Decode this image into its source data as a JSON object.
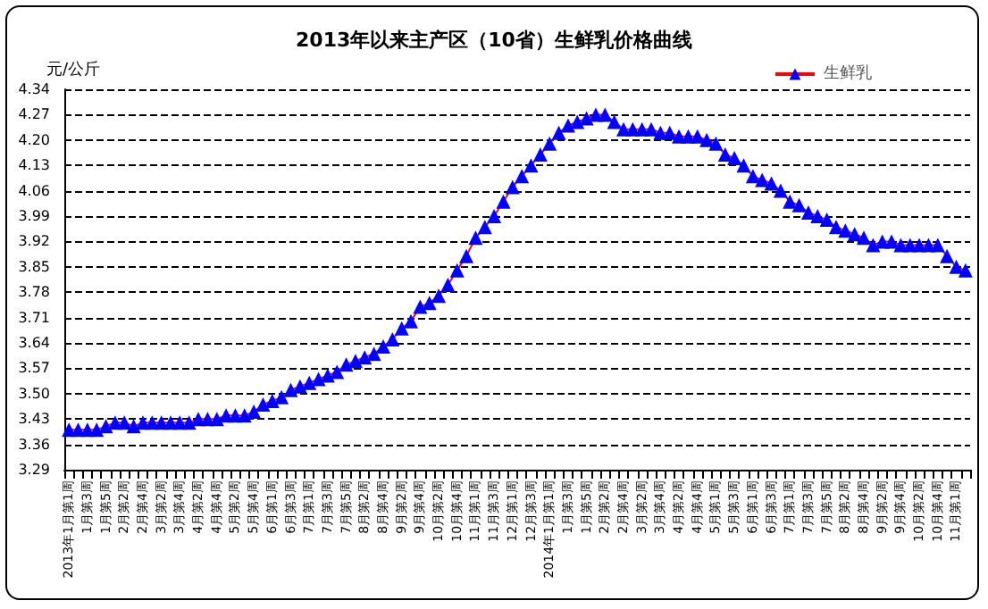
{
  "chart_data": {
    "type": "line",
    "title": "2013年以来主产区（10省）生鲜乳价格曲线",
    "ylabel": "元/公斤",
    "categories": [
      "2013年1月第1周",
      null,
      "1月第3周",
      null,
      "1月第5周",
      null,
      "2月第2周",
      null,
      "2月第4周",
      null,
      "3月第2周",
      null,
      "3月第4周",
      null,
      "4月第2周",
      null,
      "4月第4周",
      null,
      "5月第2周",
      null,
      "5月第4周",
      null,
      "6月第1周",
      null,
      "6月第3周",
      null,
      "7月第1周",
      null,
      "7月第3周",
      null,
      "7月第5周",
      null,
      "8月第2周",
      null,
      "8月第4周",
      null,
      "9月第2周",
      null,
      "9月第4周",
      null,
      "10月第2周",
      null,
      "10月第4周",
      null,
      "11月第1周",
      null,
      "11月第3周",
      null,
      "12月第1周",
      null,
      "12月第3周",
      null,
      "2014年1月第1周",
      null,
      "1月第3周",
      null,
      "1月第5周",
      null,
      "2月第2周",
      null,
      "2月第4周",
      null,
      "3月第2周",
      null,
      "3月第4周",
      null,
      "4月第2周",
      null,
      "4月第4周",
      null,
      "5月第1周",
      null,
      "5月第3周",
      null,
      "6月第1周",
      null,
      "6月第3周",
      null,
      "7月第1周",
      null,
      "7月第3周",
      null,
      "7月第5周",
      null,
      "8月第2周",
      null,
      "8月第4周",
      null,
      "9月第2周",
      null,
      "9月第4周",
      null,
      "10月第2周",
      null,
      "10月第4周",
      null,
      "11月第1周",
      null
    ],
    "series": [
      {
        "name": "生鲜乳",
        "color": "#0000ff",
        "values": [
          3.4,
          3.4,
          3.4,
          3.4,
          3.41,
          3.42,
          3.42,
          3.41,
          3.42,
          3.42,
          3.42,
          3.42,
          3.42,
          3.42,
          3.43,
          3.43,
          3.43,
          3.44,
          3.44,
          3.44,
          3.45,
          3.47,
          3.48,
          3.49,
          3.51,
          3.52,
          3.53,
          3.54,
          3.55,
          3.56,
          3.58,
          3.59,
          3.6,
          3.61,
          3.63,
          3.65,
          3.68,
          3.7,
          3.74,
          3.75,
          3.77,
          3.8,
          3.84,
          3.88,
          3.93,
          3.96,
          3.99,
          4.03,
          4.07,
          4.1,
          4.13,
          4.16,
          4.19,
          4.22,
          4.24,
          4.25,
          4.26,
          4.27,
          4.27,
          4.25,
          4.23,
          4.23,
          4.23,
          4.23,
          4.22,
          4.22,
          4.21,
          4.21,
          4.21,
          4.2,
          4.19,
          4.16,
          4.15,
          4.13,
          4.1,
          4.09,
          4.08,
          4.06,
          4.03,
          4.02,
          4.0,
          3.99,
          3.98,
          3.96,
          3.95,
          3.94,
          3.93,
          3.91,
          3.92,
          3.92,
          3.91,
          3.91,
          3.91,
          3.91,
          3.91,
          3.88,
          3.85,
          3.84
        ]
      }
    ],
    "ylim": [
      3.29,
      4.34
    ],
    "yticks": [
      3.29,
      3.36,
      3.43,
      {
        "value": 3.5,
        "label": "3.50"
      },
      3.57,
      3.64,
      3.71,
      3.78,
      3.85,
      3.92,
      3.99,
      4.06,
      4.13,
      {
        "value": 4.2,
        "label": "4.20"
      },
      4.27,
      4.34
    ],
    "grid": "y",
    "legend": "top right",
    "marker": "triangle"
  }
}
